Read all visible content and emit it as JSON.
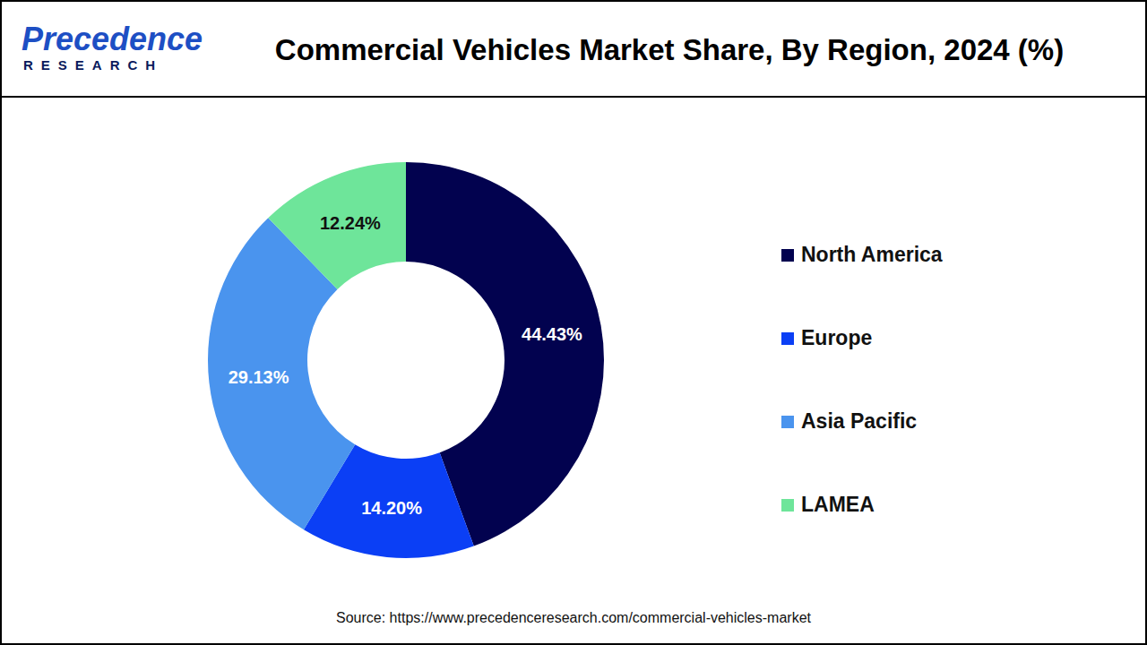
{
  "logo": {
    "name": "Precedence",
    "subname": "RESEARCH"
  },
  "chart_data": {
    "type": "pie",
    "title": "Commercial Vehicles Market Share, By Region, 2024 (%)",
    "categories": [
      "North America",
      "Europe",
      "Asia Pacific",
      "LAMEA"
    ],
    "values": [
      44.43,
      14.2,
      29.13,
      12.24
    ],
    "value_labels": [
      "44.43%",
      "14.20%",
      "29.13%",
      "12.24%"
    ],
    "colors": [
      "#02024f",
      "#0b3ff5",
      "#4a94ee",
      "#6ee59a"
    ],
    "data_labels": true,
    "legend": "right"
  },
  "source": "Source: https://www.precedenceresearch.com/commercial-vehicles-market"
}
